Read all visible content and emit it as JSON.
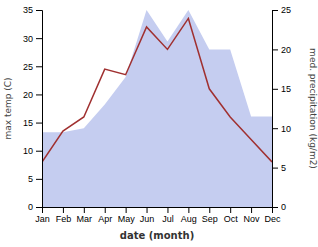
{
  "chart_data": {
    "type": "line",
    "xlabel": "date (month)",
    "ylabel": "max temp (C)",
    "y2label": "med. precipitation (kg/m2)",
    "categories": [
      "Jan",
      "Feb",
      "Mar",
      "Apr",
      "May",
      "Jun",
      "Jul",
      "Aug",
      "Sep",
      "Oct",
      "Nov",
      "Dec"
    ],
    "series": [
      {
        "type": "area",
        "axis": "y2",
        "color": "#c5cdf0",
        "values": [
          9.5,
          9.5,
          10.0,
          13.0,
          16.5,
          25.0,
          21.0,
          25.0,
          20.0,
          20.0,
          11.5,
          11.5
        ]
      },
      {
        "type": "line",
        "color": "#a03030",
        "values": [
          8.0,
          13.5,
          16.0,
          24.5,
          23.5,
          32.0,
          28.0,
          33.5,
          21.0,
          16.0,
          12.0,
          8.0
        ]
      }
    ],
    "ylim": [
      0,
      35
    ],
    "yticks": [
      0,
      5,
      10,
      15,
      20,
      25,
      30,
      35
    ],
    "y2lim": [
      0,
      25
    ],
    "y2ticks": [
      0,
      5,
      10,
      15,
      20,
      25
    ],
    "grid": false
  }
}
